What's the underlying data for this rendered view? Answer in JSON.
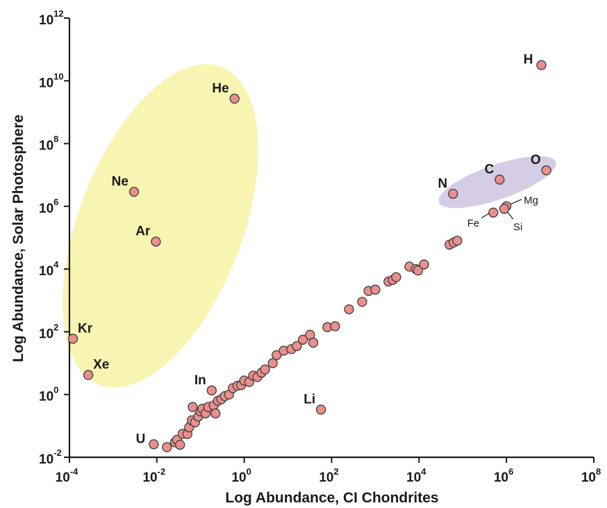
{
  "chart_data": {
    "type": "scatter",
    "title": "",
    "xlabel": "Log Abundance, CI Chondrites",
    "ylabel": "Log Abundance, Solar Photosphere",
    "x_scale": "log",
    "y_scale": "log",
    "xlim": [
      0.0001,
      100000000
    ],
    "ylim": [
      0.01,
      1000000000000
    ],
    "grid": false,
    "legend": "none",
    "x_ticks": [
      {
        "base": "10",
        "exp": "-4"
      },
      {
        "base": "10",
        "exp": "-2"
      },
      {
        "base": "10",
        "exp": "0"
      },
      {
        "base": "10",
        "exp": "2"
      },
      {
        "base": "10",
        "exp": "4"
      },
      {
        "base": "10",
        "exp": "6"
      },
      {
        "base": "10",
        "exp": "8"
      }
    ],
    "y_ticks": [
      {
        "base": "10",
        "exp": "-2"
      },
      {
        "base": "10",
        "exp": "0"
      },
      {
        "base": "10",
        "exp": "2"
      },
      {
        "base": "10",
        "exp": "4"
      },
      {
        "base": "10",
        "exp": "6"
      },
      {
        "base": "10",
        "exp": "8"
      },
      {
        "base": "10",
        "exp": "10"
      },
      {
        "base": "10",
        "exp": "12"
      }
    ],
    "colors": {
      "marker_fill": "#e98f8c",
      "marker_stroke": "#3b3b3b",
      "noble_gas_region": "#f8f4b2",
      "volatile_region": "#d5cde6",
      "axis": "#1a1a1a"
    },
    "regions": [
      {
        "name": "noble-gas-region",
        "color": "#f8f4b2",
        "encloses": [
          "He",
          "Ne",
          "Ar",
          "Kr",
          "Xe"
        ]
      },
      {
        "name": "volatile-region",
        "color": "#d5cde6",
        "encloses": [
          "N",
          "C",
          "O"
        ]
      }
    ],
    "labeled_points": [
      {
        "label": "H",
        "x": 6300000,
        "y": 31600000000,
        "label_pos": "left"
      },
      {
        "label": "He",
        "x": 0.6,
        "y": 2700000000,
        "label_pos": "above-left"
      },
      {
        "label": "Ne",
        "x": 0.003,
        "y": 2900000,
        "label_pos": "above-left"
      },
      {
        "label": "Ar",
        "x": 0.0095,
        "y": 75000,
        "label_pos": "above-left"
      },
      {
        "label": "Kr",
        "x": 0.00012,
        "y": 60,
        "label_pos": "above-right"
      },
      {
        "label": "Xe",
        "x": 0.00027,
        "y": 4.2,
        "label_pos": "above-right"
      },
      {
        "label": "In",
        "x": 0.18,
        "y": 1.35,
        "label_pos": "above-left"
      },
      {
        "label": "Li",
        "x": 57,
        "y": 0.33,
        "label_pos": "above-left"
      },
      {
        "label": "U",
        "x": 0.0085,
        "y": 0.026,
        "label_pos": "left"
      },
      {
        "label": "N",
        "x": 60000,
        "y": 2500000,
        "label_pos": "above-left"
      },
      {
        "label": "C",
        "x": 700000,
        "y": 7100000,
        "label_pos": "above-left"
      },
      {
        "label": "O",
        "x": 8200000,
        "y": 14000000,
        "label_pos": "above-left"
      },
      {
        "label": "Mg",
        "x": 1000000,
        "y": 1000000,
        "label_pos": "leader-right"
      },
      {
        "label": "Si",
        "x": 890000,
        "y": 830000,
        "label_pos": "leader-below-right"
      },
      {
        "label": "Fe",
        "x": 500000,
        "y": 630000,
        "label_pos": "leader-left"
      }
    ],
    "unlabeled_points": [
      {
        "x": 0.017,
        "y": 0.021
      },
      {
        "x": 0.026,
        "y": 0.03
      },
      {
        "x": 0.029,
        "y": 0.036
      },
      {
        "x": 0.034,
        "y": 0.025
      },
      {
        "x": 0.039,
        "y": 0.056
      },
      {
        "x": 0.05,
        "y": 0.055
      },
      {
        "x": 0.055,
        "y": 0.09
      },
      {
        "x": 0.063,
        "y": 0.15
      },
      {
        "x": 0.075,
        "y": 0.13
      },
      {
        "x": 0.066,
        "y": 0.4
      },
      {
        "x": 0.089,
        "y": 0.2
      },
      {
        "x": 0.1,
        "y": 0.29
      },
      {
        "x": 0.11,
        "y": 0.35
      },
      {
        "x": 0.13,
        "y": 0.25
      },
      {
        "x": 0.15,
        "y": 0.4
      },
      {
        "x": 0.2,
        "y": 0.45
      },
      {
        "x": 0.22,
        "y": 0.25
      },
      {
        "x": 0.25,
        "y": 0.63
      },
      {
        "x": 0.3,
        "y": 0.71
      },
      {
        "x": 0.36,
        "y": 0.89
      },
      {
        "x": 0.45,
        "y": 1.0
      },
      {
        "x": 0.55,
        "y": 1.6
      },
      {
        "x": 0.7,
        "y": 1.9
      },
      {
        "x": 0.85,
        "y": 2.0
      },
      {
        "x": 1.0,
        "y": 2.8
      },
      {
        "x": 1.3,
        "y": 2.5
      },
      {
        "x": 1.6,
        "y": 4.0
      },
      {
        "x": 2.0,
        "y": 3.6
      },
      {
        "x": 2.5,
        "y": 5.0
      },
      {
        "x": 3.0,
        "y": 6.3
      },
      {
        "x": 4.5,
        "y": 10
      },
      {
        "x": 5.5,
        "y": 18
      },
      {
        "x": 8.0,
        "y": 25
      },
      {
        "x": 12,
        "y": 28
      },
      {
        "x": 16,
        "y": 35
      },
      {
        "x": 22,
        "y": 56
      },
      {
        "x": 32,
        "y": 80
      },
      {
        "x": 38,
        "y": 45
      },
      {
        "x": 80,
        "y": 140
      },
      {
        "x": 120,
        "y": 150
      },
      {
        "x": 250,
        "y": 520
      },
      {
        "x": 500,
        "y": 900
      },
      {
        "x": 700,
        "y": 2000
      },
      {
        "x": 1000,
        "y": 2200
      },
      {
        "x": 2000,
        "y": 4000
      },
      {
        "x": 2500,
        "y": 4500
      },
      {
        "x": 3000,
        "y": 5500
      },
      {
        "x": 6000,
        "y": 12000
      },
      {
        "x": 8500,
        "y": 10000
      },
      {
        "x": 9500,
        "y": 9000
      },
      {
        "x": 13000,
        "y": 14000
      },
      {
        "x": 50000,
        "y": 60000
      },
      {
        "x": 62000,
        "y": 70000
      },
      {
        "x": 75000,
        "y": 80000
      }
    ]
  }
}
